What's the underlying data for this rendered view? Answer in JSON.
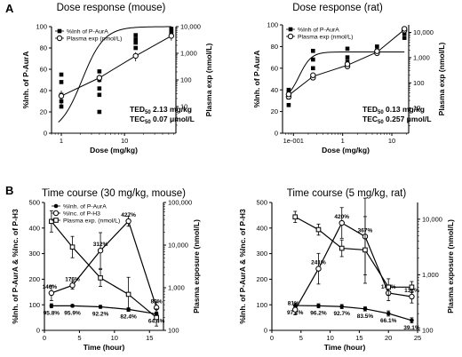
{
  "panel_labels": [
    "A",
    "B"
  ],
  "chart_data": [
    {
      "type": "scatter",
      "title": "Dose response (mouse)",
      "xlabel": "Dose (mg/kg)",
      "ylabel": "%Inh. of P-AurA",
      "y2label": "Plasma exp (nmol/L)",
      "xscale": "log",
      "xlim": [
        0.7,
        65
      ],
      "ylim": [
        0,
        100
      ],
      "y2scale": "log",
      "y2lim": [
        1,
        10000
      ],
      "xticks": [
        "1",
        "10"
      ],
      "yticks": [
        "0",
        "20",
        "40",
        "60",
        "80",
        "100"
      ],
      "y2ticks": [
        "10",
        "100",
        "1,000",
        "10,000"
      ],
      "legend": [
        "%Inh of P-AurA",
        "Plasma exp (nmol/L)"
      ],
      "legend_position": "top-left",
      "series": [
        {
          "name": "%Inh of P-AurA",
          "marker": "square",
          "axis": "left",
          "points": [
            [
              1,
              55
            ],
            [
              1,
              48
            ],
            [
              1,
              36
            ],
            [
              1,
              30
            ],
            [
              1,
              25
            ],
            [
              4,
              58
            ],
            [
              4,
              50
            ],
            [
              4,
              42
            ],
            [
              4,
              36
            ],
            [
              4,
              20
            ],
            [
              15,
              92
            ],
            [
              15,
              88
            ],
            [
              15,
              85
            ],
            [
              15,
              80
            ],
            [
              55,
              98
            ],
            [
              55,
              96
            ],
            [
              55,
              94
            ]
          ]
        },
        {
          "name": "Plasma exp (nmol/L)",
          "marker": "circle",
          "axis": "right",
          "points": [
            [
              1,
              25
            ],
            [
              4,
              120
            ],
            [
              15,
              800
            ],
            [
              55,
              4500
            ]
          ],
          "errors": [
            15,
            40,
            300,
            1500
          ]
        }
      ],
      "fits": [
        {
          "kind": "sigmoid",
          "axis": "left",
          "x_from": 0.9,
          "x_to": 55,
          "bottom": 0,
          "top": 100,
          "ec50": 2.13,
          "hill": 2.5
        },
        {
          "kind": "line",
          "axis": "right",
          "points": [
            [
              1,
              25
            ],
            [
              4,
              120
            ],
            [
              15,
              800
            ],
            [
              55,
              4500
            ]
          ]
        }
      ],
      "notes": [
        {
          "label": "TED",
          "sub": "50",
          "value": "2.13 mg/kg"
        },
        {
          "label": "TEC",
          "sub": "50",
          "value": "0.07 μmol/L"
        }
      ]
    },
    {
      "type": "scatter",
      "title": "Dose response (rat)",
      "xlabel": "Dose (mg/kg)",
      "ylabel": "%Inh. of P-AurA",
      "y2label": "Plasma exp (nmol/L)",
      "xscale": "log",
      "xlim": [
        0.06,
        22
      ],
      "ylim": [
        0,
        100
      ],
      "y2scale": "log",
      "y2lim": [
        1,
        20000
      ],
      "xticks": [
        "1e-001",
        "1",
        "10"
      ],
      "yticks": [
        "0",
        "20",
        "40",
        "60",
        "80",
        "100"
      ],
      "y2ticks": [
        "10",
        "100",
        "1,000",
        "10,000"
      ],
      "legend": [
        "%Inh of P-AurA",
        "Plasma exp (nmol/L)"
      ],
      "legend_position": "top-left",
      "series": [
        {
          "name": "%Inh of P-AurA",
          "marker": "square",
          "axis": "left",
          "points": [
            [
              0.08,
              40
            ],
            [
              0.08,
              37
            ],
            [
              0.08,
              33
            ],
            [
              0.08,
              26
            ],
            [
              0.25,
              76
            ],
            [
              0.25,
              68
            ],
            [
              0.25,
              60
            ],
            [
              0.25,
              52
            ],
            [
              1.25,
              78
            ],
            [
              1.25,
              70
            ],
            [
              1.25,
              66
            ],
            [
              5,
              80
            ],
            [
              5,
              76
            ],
            [
              5,
              74
            ],
            [
              18,
              95
            ],
            [
              18,
              92
            ],
            [
              18,
              88
            ]
          ]
        },
        {
          "name": "Plasma exp (nmol/L)",
          "marker": "circle",
          "axis": "right",
          "points": [
            [
              0.08,
              28
            ],
            [
              0.08,
              35
            ],
            [
              0.25,
              160
            ],
            [
              0.25,
              200
            ],
            [
              1.25,
              450
            ],
            [
              1.25,
              550
            ],
            [
              5,
              1500
            ],
            [
              5,
              1800
            ],
            [
              18,
              12000
            ],
            [
              18,
              14000
            ]
          ],
          "errors": [
            0,
            0,
            0,
            0,
            0,
            0,
            0,
            0,
            0,
            0
          ]
        }
      ],
      "fits": [
        {
          "kind": "sigmoid",
          "axis": "left",
          "x_from": 0.08,
          "x_to": 18,
          "bottom": 30,
          "top": 75,
          "ec50": 0.13,
          "hill": 3.5
        },
        {
          "kind": "line",
          "axis": "right",
          "points": [
            [
              0.08,
              32
            ],
            [
              0.25,
              180
            ],
            [
              1.25,
              500
            ],
            [
              5,
              1650
            ],
            [
              18,
              13000
            ]
          ]
        }
      ],
      "notes": [
        {
          "label": "TED",
          "sub": "50",
          "value": "0.13 mg/kg"
        },
        {
          "label": "TEC",
          "sub": "50",
          "value": "0.257 μmol/L"
        }
      ]
    },
    {
      "type": "line",
      "title": "Time course (30 mg/kg, mouse)",
      "xlabel": "Time (hour)",
      "ylabel": "%Inh. of P-AurA & %Inc. of P-H3",
      "y2label": "Plasma exposure (nmol/L)",
      "xlim": [
        0,
        17
      ],
      "ylim": [
        0,
        500
      ],
      "y2scale": "log",
      "y2lim": [
        100,
        100000
      ],
      "xticks": [
        "0",
        "5",
        "10",
        "15"
      ],
      "yticks": [
        "0",
        "100",
        "200",
        "300",
        "400",
        "500"
      ],
      "y2ticks": [
        "100",
        "1,000",
        "10,000",
        "100,000"
      ],
      "legend": [
        "%Inh. of P-AurA",
        "%Inc. of P-H3",
        "Plasma exp. (nmol/L)"
      ],
      "legend_position": "top-left",
      "series": [
        {
          "name": "%Inh. of P-AurA",
          "marker": "filled-circle",
          "axis": "left",
          "x": [
            1,
            4,
            8,
            12,
            16
          ],
          "y": [
            96,
            96,
            92,
            82,
            64
          ],
          "err": [
            8,
            5,
            6,
            6,
            8
          ],
          "labels": [
            "95.8%",
            "95.9%",
            "92.2%",
            "82.4%",
            "64.4%"
          ]
        },
        {
          "name": "%Inc. of P-H3",
          "marker": "open-circle",
          "axis": "left",
          "x": [
            1,
            4,
            8,
            12,
            16
          ],
          "y": [
            146,
            176,
            312,
            427,
            89
          ],
          "err": [
            30,
            15,
            70,
            20,
            20
          ],
          "labels": [
            "146%",
            "176%",
            "312%",
            "427%",
            "89%"
          ]
        },
        {
          "name": "Plasma exp. (nmol/L)",
          "marker": "square",
          "axis": "right",
          "x": [
            1,
            4,
            8,
            12,
            16
          ],
          "y": [
            36000,
            9000,
            1700,
            700,
            200
          ],
          "err": [
            0.25,
            0.25,
            0.2,
            0.4,
            0.2
          ],
          "labels": [
            "",
            "",
            "",
            "",
            ""
          ]
        }
      ]
    },
    {
      "type": "line",
      "title": "Time course (5 mg/kg, rat)",
      "xlabel": "Time (hour)",
      "ylabel": "%Inh. of P-AurA & %Inc. of P-H3",
      "y2label": "Plasma exposure (nmol/L)",
      "xlim": [
        0,
        25
      ],
      "ylim": [
        0,
        500
      ],
      "y2scale": "log",
      "y2lim": [
        100,
        20000
      ],
      "xticks": [
        "0",
        "5",
        "10",
        "15",
        "20",
        "25"
      ],
      "yticks": [
        "0",
        "100",
        "200",
        "300",
        "400",
        "500"
      ],
      "y2ticks": [
        "100",
        "1,000",
        "10,000"
      ],
      "legend": [],
      "legend_position": "none",
      "series": [
        {
          "name": "%Inh. of P-AurA",
          "marker": "filled-circle",
          "axis": "left",
          "x": [
            4,
            8,
            12,
            16,
            20,
            24
          ],
          "y": [
            97,
            96,
            93,
            84,
            66,
            39
          ],
          "err": [
            10,
            8,
            8,
            8,
            10,
            10
          ],
          "labels": [
            "97.2%",
            "96.2%",
            "92.7%",
            "83.5%",
            "66.1%",
            "39.1%"
          ]
        },
        {
          "name": "%Inc. of P-H3",
          "marker": "open-circle",
          "axis": "left",
          "x": [
            4,
            8,
            12,
            16,
            20,
            24
          ],
          "y": [
            81,
            241,
            420,
            367,
            146,
            132
          ],
          "err": [
            20,
            60,
            60,
            150,
            30,
            25
          ],
          "labels": [
            "81%",
            "241%",
            "420%",
            "367%",
            "146%",
            "132%"
          ]
        },
        {
          "name": "Plasma exp. (nmol/L)",
          "marker": "square",
          "axis": "right",
          "x": [
            4,
            8,
            12,
            16,
            20,
            24
          ],
          "y": [
            11000,
            6500,
            3000,
            2800,
            600,
            600
          ],
          "err": [
            0.1,
            0.1,
            0.15,
            0.6,
            0.15,
            0.1
          ],
          "labels": [
            "",
            "",
            "",
            "",
            "",
            ""
          ]
        }
      ]
    }
  ]
}
